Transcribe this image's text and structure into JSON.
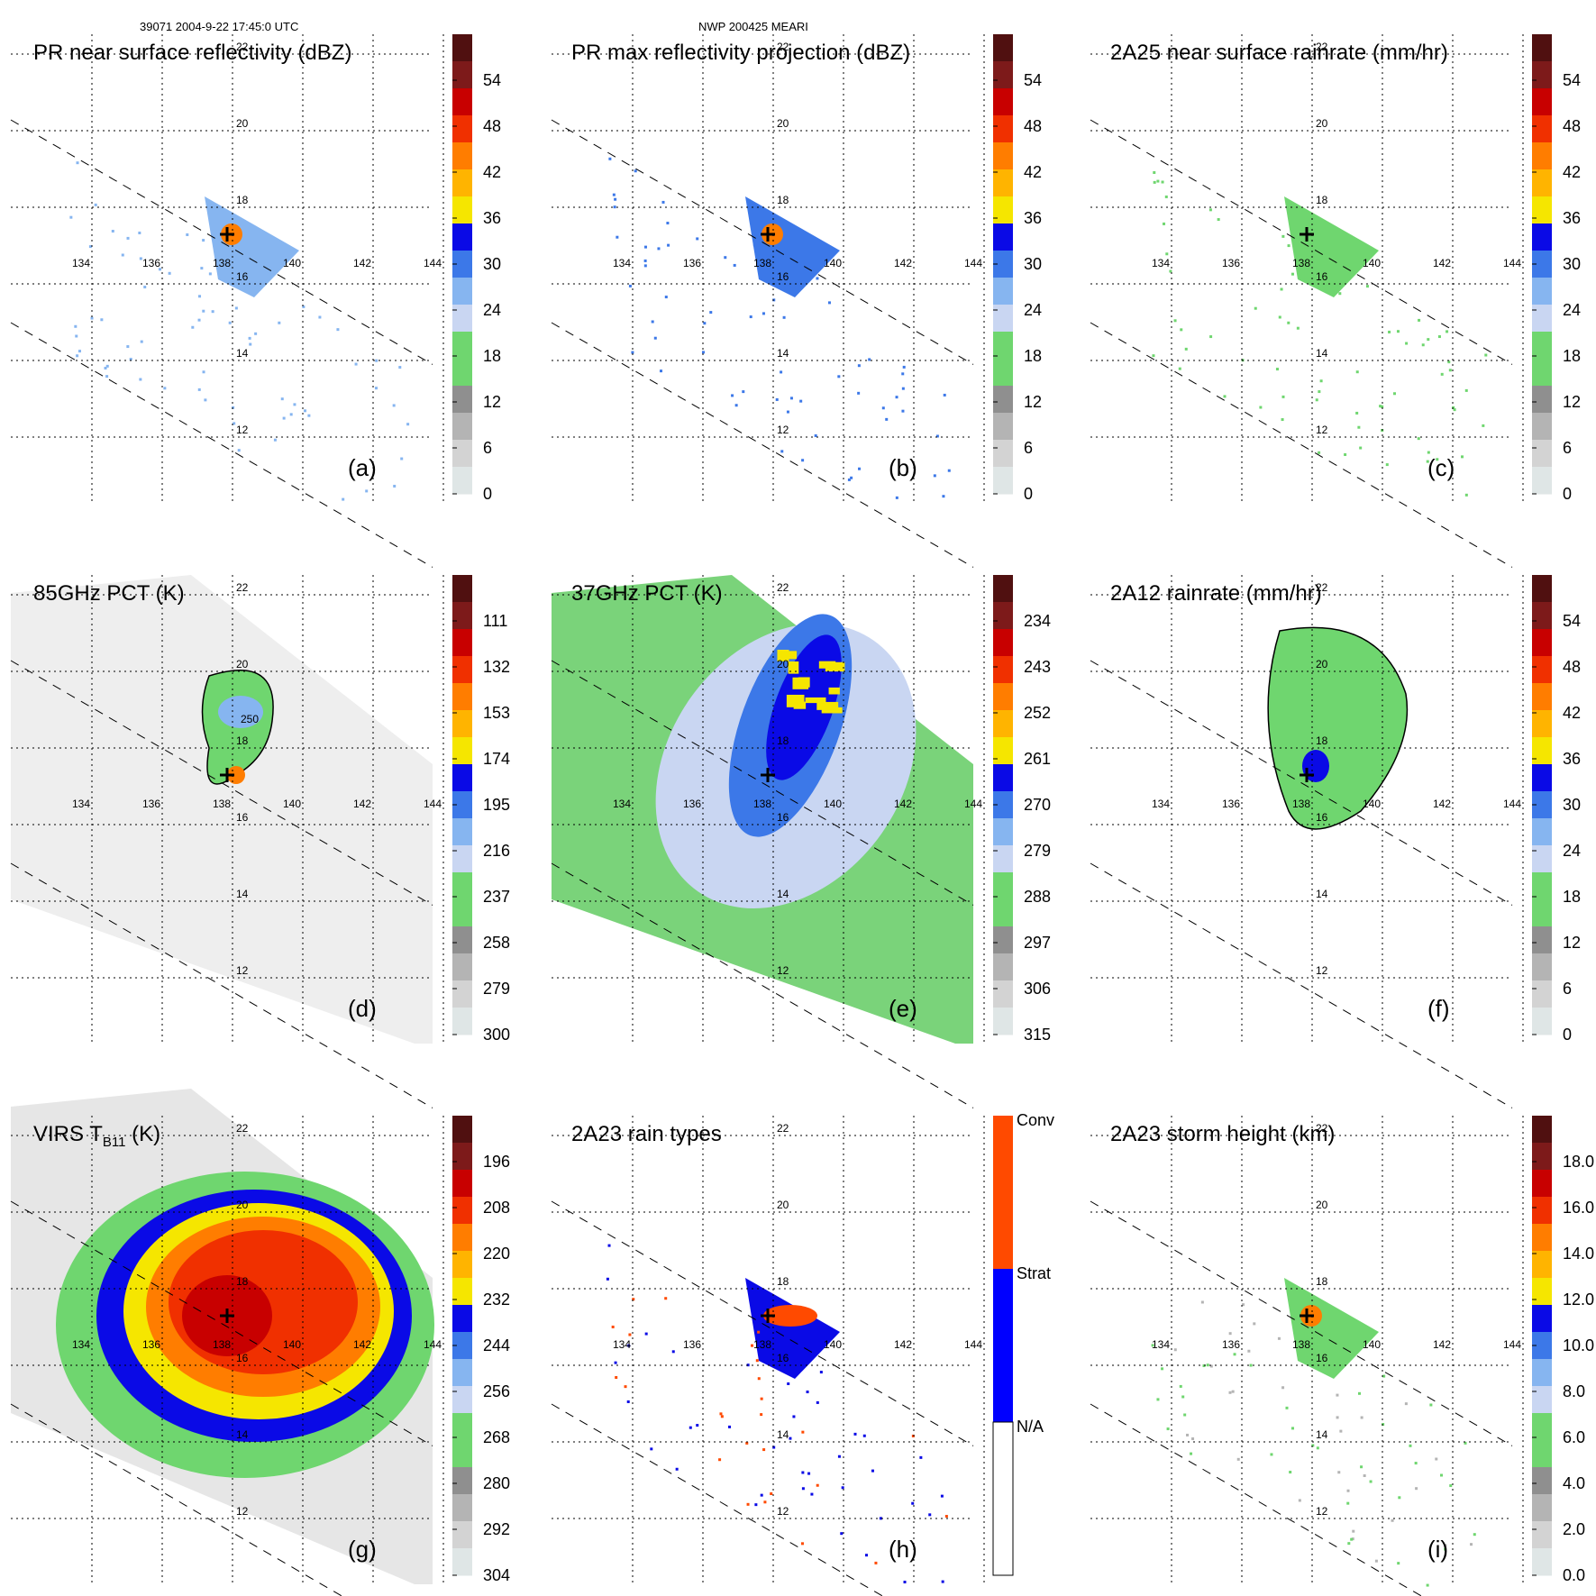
{
  "header": {
    "left": "39071 2004-9-22 17:45:0 UTC",
    "center": "NWP 200425 MEARI"
  },
  "colors": {
    "scale": [
      "#dfe6e6",
      "#d3d3d3",
      "#b4b4b4",
      "#8f8f8f",
      "#6fd66f",
      "#6fd66f",
      "#c9d6f2",
      "#86b5f0",
      "#3c78e8",
      "#0a0ae6",
      "#f5e600",
      "#ffb400",
      "#ff7d00",
      "#f03000",
      "#c80000",
      "#7d1a1a",
      "#501010"
    ],
    "raintype": [
      "#ffffff",
      "#0000ff",
      "#ff4a00"
    ],
    "pct_green": "#7ad37a",
    "swath_gray": "#eeeeee"
  },
  "lon_labels": [
    "134",
    "136",
    "138",
    "140",
    "142",
    "144"
  ],
  "lat_labels": [
    "12",
    "14",
    "16",
    "18",
    "20",
    "22"
  ],
  "center_lat_label": "16",
  "panels": [
    {
      "id": "a",
      "title": "PR near surface reflectivity (dBZ)",
      "label": "(a)",
      "ticks": [
        "54",
        "48",
        "42",
        "36",
        "30",
        "24",
        "18",
        "12",
        "6",
        "0"
      ],
      "style": "pr"
    },
    {
      "id": "b",
      "title": "PR max reflectivity projection (dBZ)",
      "label": "(b)",
      "ticks": [
        "54",
        "48",
        "42",
        "36",
        "30",
        "24",
        "18",
        "12",
        "6",
        "0"
      ],
      "style": "prmax"
    },
    {
      "id": "c",
      "title": "2A25 near surface rainrate (mm/hr)",
      "label": "(c)",
      "ticks": [
        "54",
        "48",
        "42",
        "36",
        "30",
        "24",
        "18",
        "12",
        "6",
        "0"
      ],
      "style": "rr"
    },
    {
      "id": "d",
      "title": "85GHz PCT (K)",
      "label": "(d)",
      "ticks": [
        "111",
        "132",
        "153",
        "174",
        "195",
        "216",
        "237",
        "258",
        "279",
        "300"
      ],
      "style": "pct85",
      "contour_label": "250"
    },
    {
      "id": "e",
      "title": "37GHz PCT (K)",
      "label": "(e)",
      "ticks": [
        "234",
        "243",
        "252",
        "261",
        "270",
        "279",
        "288",
        "297",
        "306",
        "315"
      ],
      "style": "pct37"
    },
    {
      "id": "f",
      "title": "2A12 rainrate (mm/hr)",
      "label": "(f)",
      "ticks": [
        "54",
        "48",
        "42",
        "36",
        "30",
        "24",
        "18",
        "12",
        "6",
        "0"
      ],
      "style": "rr12"
    },
    {
      "id": "g",
      "title_main": "VIRS T",
      "title_sub": "B11",
      "title_unit": " (K)",
      "label": "(g)",
      "ticks": [
        "196",
        "208",
        "220",
        "232",
        "244",
        "256",
        "268",
        "280",
        "292",
        "304"
      ],
      "style": "virs"
    },
    {
      "id": "h",
      "title": "2A23 rain types",
      "label": "(h)",
      "ticks": [
        "Conv",
        "Strat",
        "N/A"
      ],
      "style": "types"
    },
    {
      "id": "i",
      "title": "2A23 storm height (km)",
      "label": "(i)",
      "ticks": [
        "18.0",
        "16.0",
        "14.0",
        "12.0",
        "10.0",
        "8.0",
        "6.0",
        "4.0",
        "2.0",
        "0.0"
      ],
      "style": "height"
    }
  ]
}
